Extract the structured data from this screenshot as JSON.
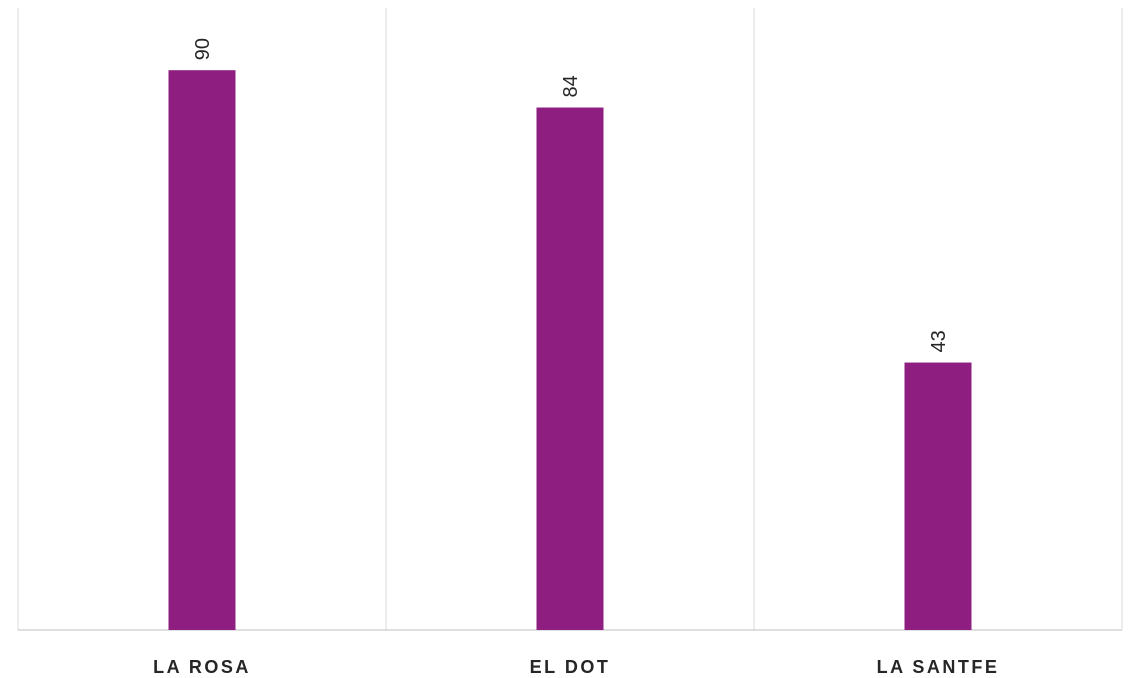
{
  "chart_data": {
    "type": "bar",
    "categories": [
      "LA ROSA",
      "EL DOT",
      "LA SANTFE"
    ],
    "values": [
      90,
      84,
      43
    ],
    "data_labels": [
      "90",
      "84",
      "43"
    ],
    "title": "",
    "xlabel": "",
    "ylabel": "",
    "ylim": [
      0,
      100
    ],
    "grid": "vertical category separators",
    "legend": "none",
    "colors": {
      "bar": "#8E1F80",
      "grid": "#D9D9D9",
      "axis": "#BFBFBF",
      "text": "#262626"
    }
  }
}
